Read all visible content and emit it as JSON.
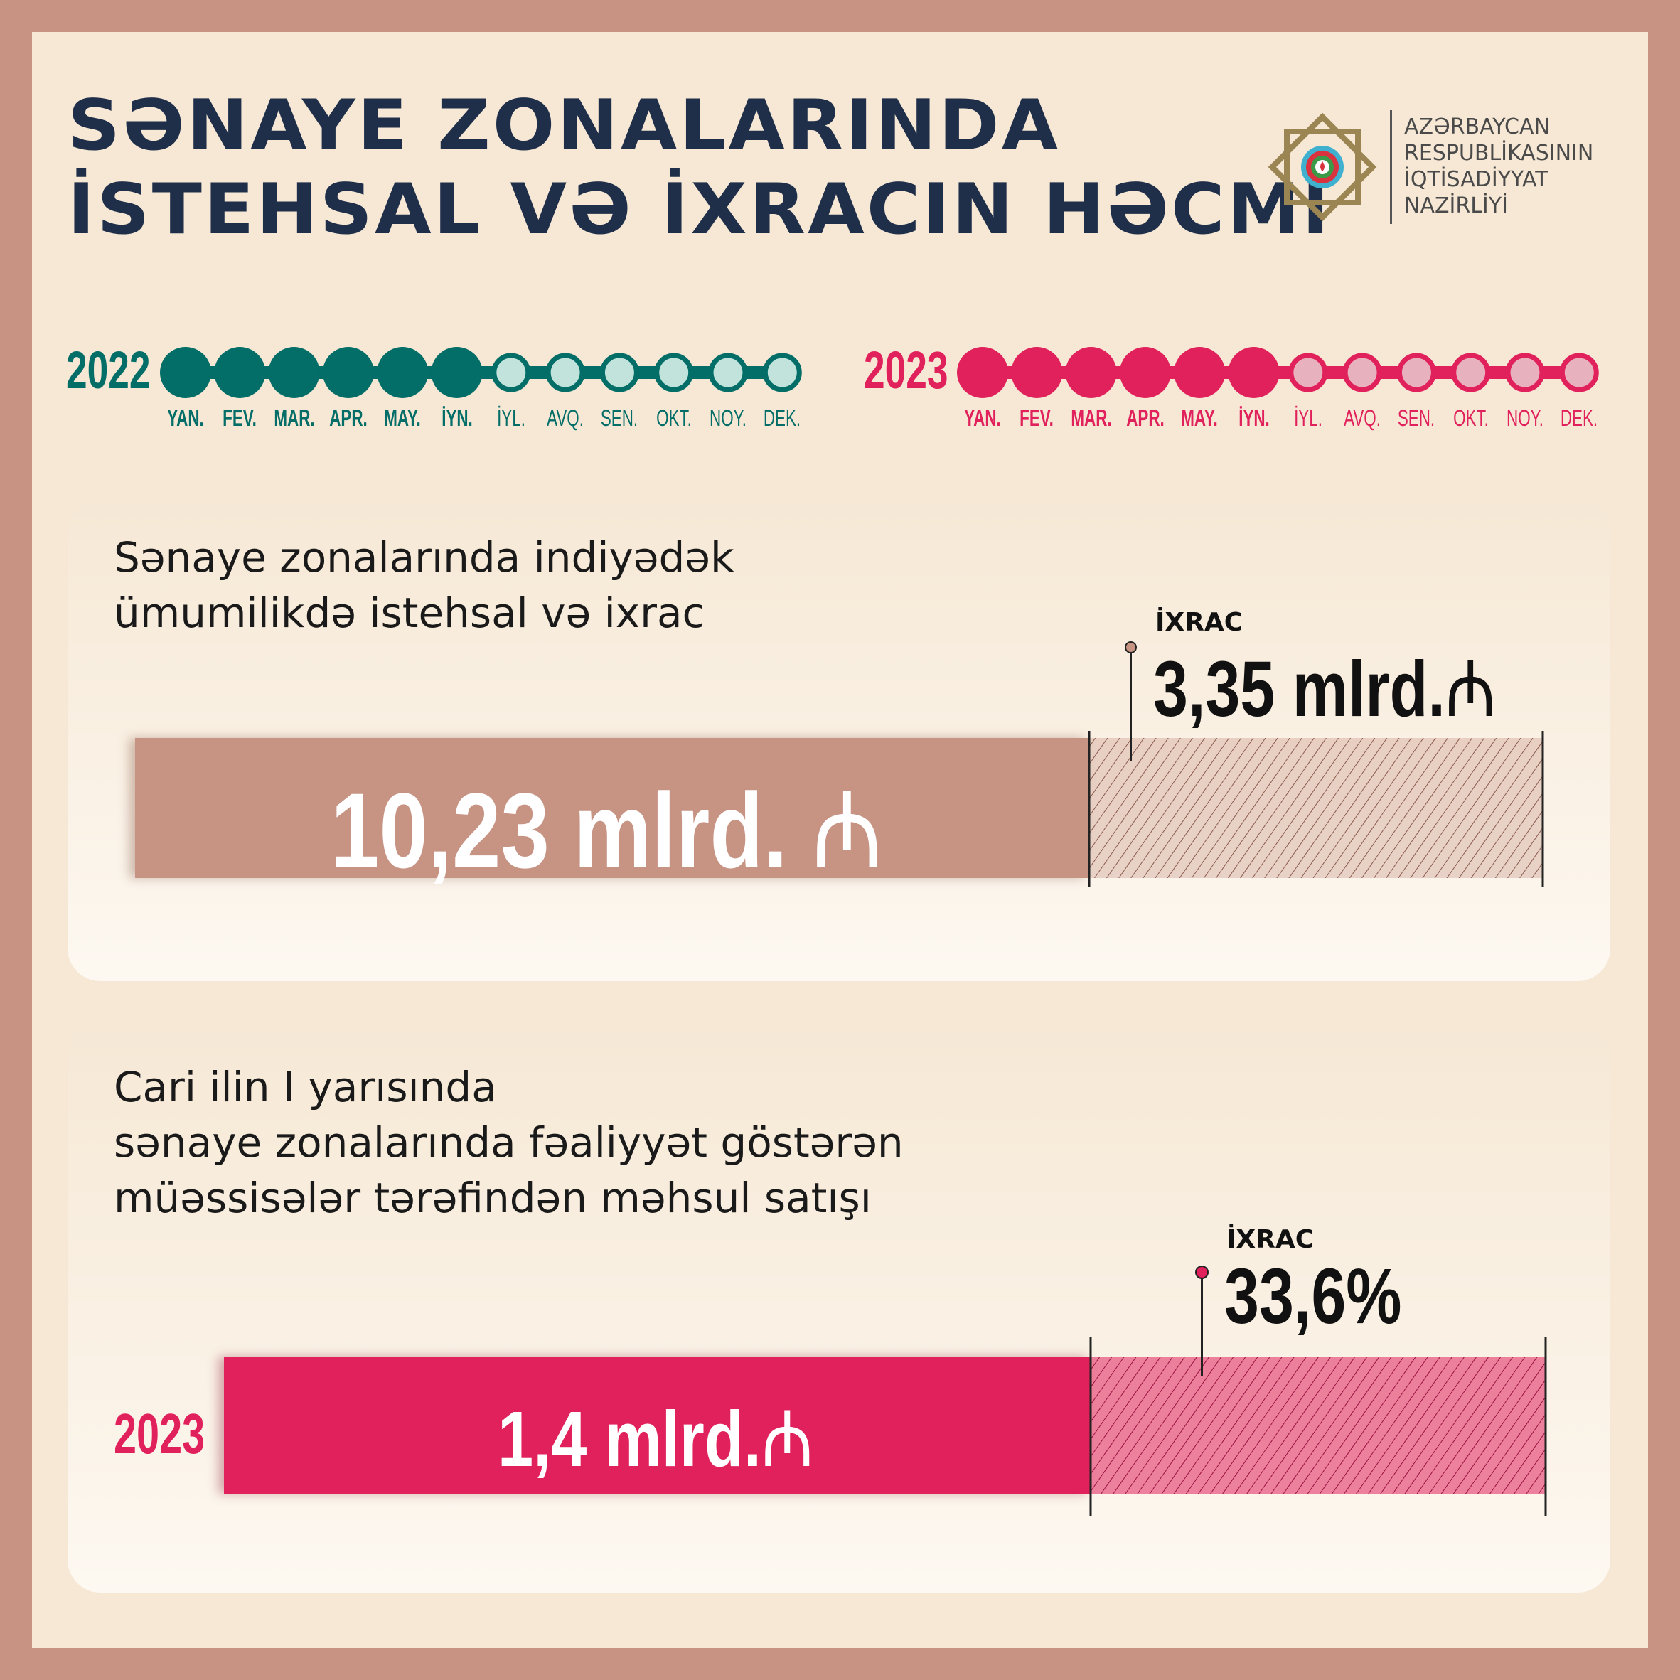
{
  "title": {
    "line1": "SƏNAYE ZONALARINDA",
    "line2": "İSTEHSAL VƏ İXRACIN HƏCMİ"
  },
  "org": {
    "line1": "AZƏRBAYCAN",
    "line2": "RESPUBLİKASININ",
    "line3": "İQTİSADİYYAT",
    "line4": "NAZİRLİYİ"
  },
  "timeline": [
    {
      "year": "2022",
      "color": "#036d68",
      "light": "#c2e3dc",
      "filled_months": 6,
      "months": [
        "YAN.",
        "FEV.",
        "MAR.",
        "APR.",
        "MAY.",
        "İYN.",
        "İYL.",
        "AVQ.",
        "SEN.",
        "OKT.",
        "NOY.",
        "DEK."
      ]
    },
    {
      "year": "2023",
      "color": "#e0215c",
      "light": "#e7b2be",
      "filled_months": 6,
      "months": [
        "YAN.",
        "FEV.",
        "MAR.",
        "APR.",
        "MAY.",
        "İYN.",
        "İYL.",
        "AVQ.",
        "SEN.",
        "OKT.",
        "NOY.",
        "DEK."
      ]
    }
  ],
  "card1": {
    "line1": "Sənaye zonalarında indiyədək",
    "line2": "ümumilikdə istehsal və ixrac",
    "total": "10,23 mlrd.",
    "export_label": "İXRAC",
    "export_value": "3,35 mlrd.",
    "currency_icon": "manat-icon",
    "color": "#c79383"
  },
  "card2": {
    "line1": "Cari ilin I yarısında",
    "line2": "sənaye zonalarında fəaliyyət göstərən",
    "line3": "müəssisələr tərəfindən məhsul satışı",
    "year": "2023",
    "total": "1,4 mlrd.",
    "export_label": "İXRAC",
    "export_value": "33,6%",
    "currency_icon": "manat-icon",
    "color": "#e0215c"
  }
}
